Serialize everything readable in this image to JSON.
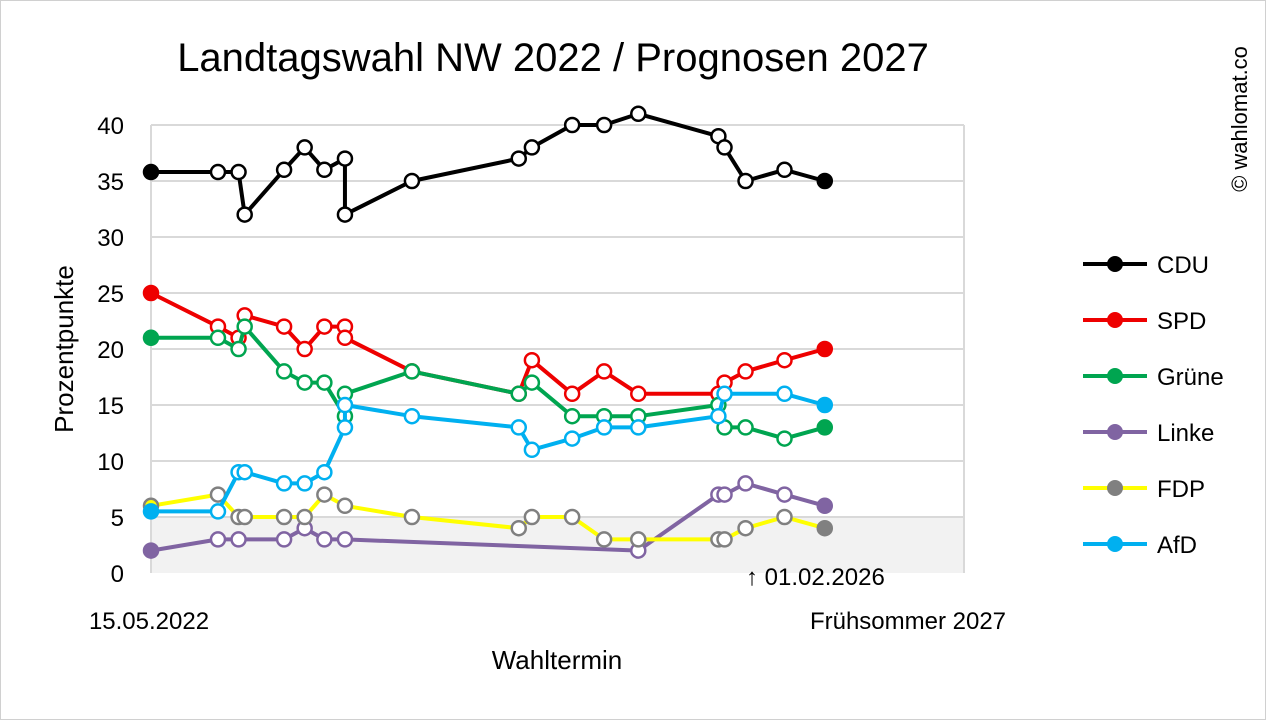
{
  "chart_data": {
    "type": "line",
    "title": "Landtagswahl NW 2022 / Prognosen 2027",
    "xlabel": "Wahltermin",
    "ylabel": "Prozentpunkte",
    "x_start_label": "15.05.2022",
    "x_end_label": "Frühsommer 2027",
    "annotation": "↑ 01.02.2026",
    "watermark": "© wahlomat.co",
    "ylim": [
      0,
      40
    ],
    "yticks": [
      0,
      5,
      10,
      15,
      20,
      25,
      30,
      35,
      40
    ],
    "threshold": 5,
    "grid": true,
    "legend_position": "right",
    "x_dates": [
      "2022-05-15",
      "2022-10-15",
      "2022-12-01",
      "2023-01-15",
      "2023-02-15",
      "2023-08-01",
      "2023-11-01",
      "2024-01-01",
      "2024-04-01",
      "2024-06-01",
      "2025-01-01",
      "2025-03-01",
      "2025-08-01",
      "2025-12-01",
      "2026-01-01",
      "2026-02-01"
    ],
    "series": [
      {
        "name": "CDU",
        "color": "#000000",
        "dot_outline": "#000000",
        "values": [
          35.8,
          35.8,
          32,
          36,
          38,
          36,
          37,
          32,
          35,
          37,
          38,
          40,
          40,
          41,
          39,
          38,
          35,
          36,
          35
        ],
        "x_override": [
          "2022-05-15",
          "2022-10-15",
          "2022-12-01",
          "2022-12-01",
          "2023-01-15",
          "2023-08-01",
          "2023-08-01",
          "2023-11-01",
          "2023-11-01",
          "2024-04-01",
          "2024-06-01",
          "2024-10-01",
          "2025-01-01",
          "2025-03-01",
          "2025-08-01",
          "2025-10-01",
          "2025-11-01",
          "2026-01-01",
          "2026-02-01"
        ]
      }
    ]
  }
}
